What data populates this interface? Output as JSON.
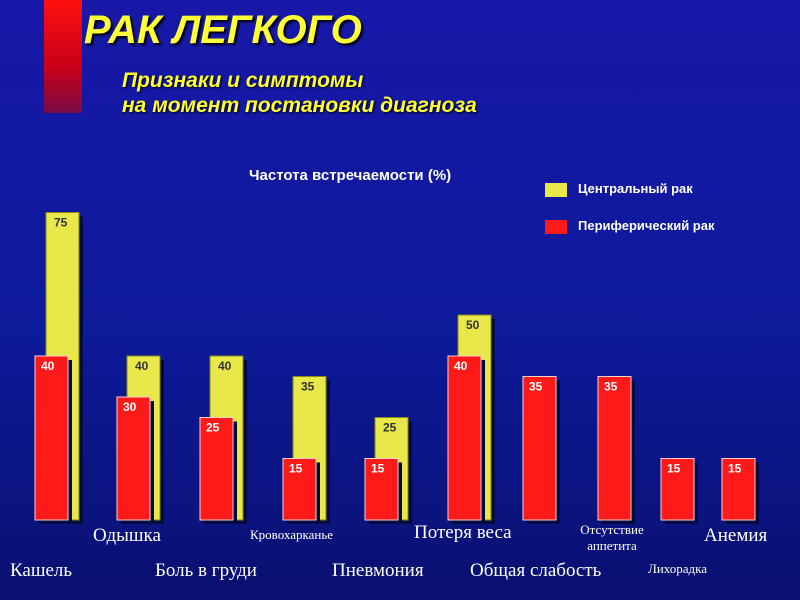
{
  "header": {
    "title": "РАК ЛЕГКОГО",
    "subtitle_line1": "Признаки и симптомы",
    "subtitle_line2": "на момент постановки диагноза"
  },
  "colors": {
    "central": "#e8e84a",
    "peripheral": "#ff1a1a",
    "title": "#ffff33",
    "background": "#1414a0"
  },
  "chart_data": {
    "type": "bar",
    "ylabel": "Частота встречаемости (%)",
    "categories": [
      "Кашель",
      "Одышка",
      "Боль в груди",
      "Кровохарканье",
      "Пневмония",
      "Потеря веса",
      "Общая слабость",
      "Отсутствие аппетита",
      "Лихорадка",
      "Анемия"
    ],
    "series": [
      {
        "name": "Центральный рак",
        "values": [
          75,
          40,
          40,
          35,
          25,
          50,
          null,
          null,
          null,
          null
        ]
      },
      {
        "name": "Периферический рак",
        "values": [
          40,
          30,
          25,
          15,
          15,
          40,
          35,
          35,
          15,
          15
        ]
      }
    ],
    "ylim": [
      0,
      80
    ],
    "legend_position": "top-right",
    "grid": false
  }
}
